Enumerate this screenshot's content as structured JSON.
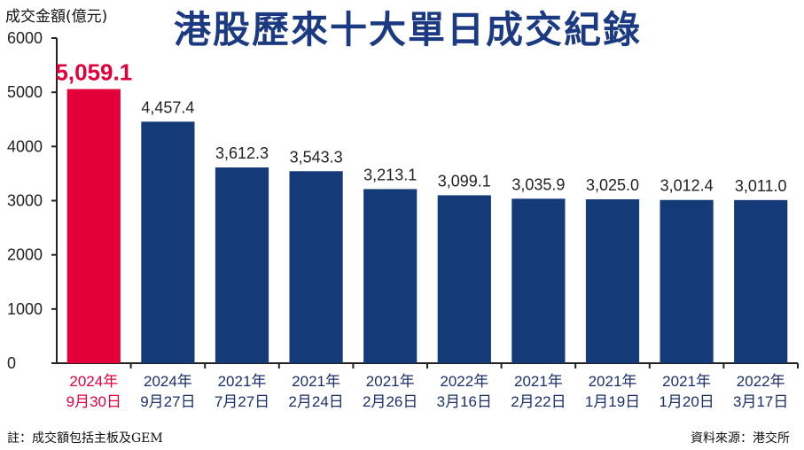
{
  "footnote": "註：成交額包括主板及GEM",
  "source": "資料來源：港交所",
  "chart_data": {
    "type": "bar",
    "title": "港股歷來十大單日成交紀錄",
    "ylabel": "成交金額(億元)",
    "xlabel": "",
    "ylim": [
      0,
      6000
    ],
    "yticks": [
      0,
      1000,
      2000,
      3000,
      4000,
      5000,
      6000
    ],
    "grid": false,
    "categories": [
      [
        "2024年",
        "9月30日"
      ],
      [
        "2024年",
        "9月27日"
      ],
      [
        "2021年",
        "7月27日"
      ],
      [
        "2021年",
        "2月24日"
      ],
      [
        "2021年",
        "2月26日"
      ],
      [
        "2022年",
        "3月16日"
      ],
      [
        "2021年",
        "2月22日"
      ],
      [
        "2021年",
        "1月19日"
      ],
      [
        "2021年",
        "1月20日"
      ],
      [
        "2022年",
        "3月17日"
      ]
    ],
    "values": [
      5059.1,
      4457.4,
      3612.3,
      3543.3,
      3213.1,
      3099.1,
      3035.9,
      3025.0,
      3012.4,
      3011.0
    ],
    "value_labels": [
      "5,059.1",
      "4,457.4",
      "3,612.3",
      "3,543.3",
      "3,213.1",
      "3,099.1",
      "3,035.9",
      "3,025.0",
      "3,012.4",
      "3,011.0"
    ],
    "highlight_index": 0,
    "colors": {
      "bar": "#143a78",
      "highlight": "#e3003a",
      "axis": "#222222",
      "label": "#222222"
    }
  }
}
